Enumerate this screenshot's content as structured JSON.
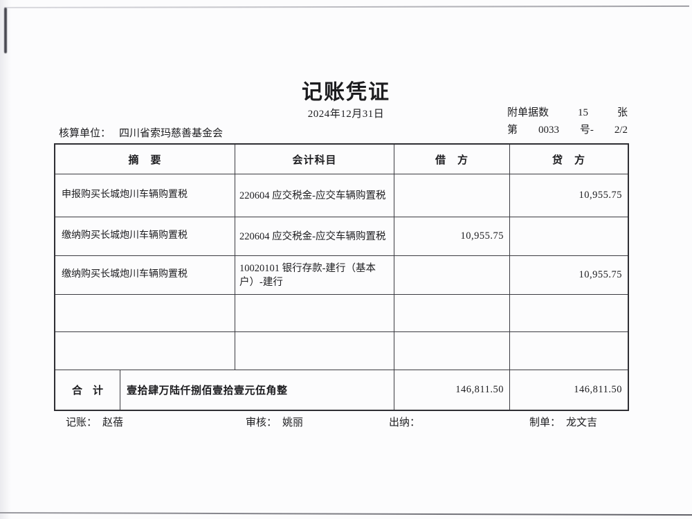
{
  "colors": {
    "ink": "#1c1c1f",
    "paper": "#fcfcfd",
    "table_border": "#3a3a40"
  },
  "document": {
    "title": "记账凭证",
    "date": "2024年12月31日",
    "attachment": {
      "label": "附单据数",
      "count": "15",
      "unit": "张"
    },
    "voucher_no": {
      "prefix": "第",
      "value": "0033",
      "suffix": "号-",
      "page": "2/2"
    },
    "unit": {
      "label": "核算单位：",
      "value": "四川省索玛慈善基金会"
    }
  },
  "table": {
    "headers": {
      "summary": "摘　要",
      "account": "会计科目",
      "debit": "借　方",
      "credit": "贷　方"
    },
    "rows": [
      {
        "summary": "申报购买长城炮川车辆购置税",
        "account": "220604 应交税金-应交车辆购置税",
        "debit": "",
        "credit": "10,955.75"
      },
      {
        "summary": "缴纳购买长城炮川车辆购置税",
        "account": "220604 应交税金-应交车辆购置税",
        "debit": "10,955.75",
        "credit": ""
      },
      {
        "summary": "缴纳购买长城炮川车辆购置税",
        "account": "10020101 银行存款-建行（基本户）-建行",
        "debit": "",
        "credit": "10,955.75"
      },
      {
        "summary": "",
        "account": "",
        "debit": "",
        "credit": ""
      },
      {
        "summary": "",
        "account": "",
        "debit": "",
        "credit": ""
      }
    ],
    "total": {
      "label": "合　计",
      "amount_in_words": "壹拾肆万陆仟捌佰壹拾壹元伍角整",
      "debit": "146,811.50",
      "credit": "146,811.50"
    }
  },
  "signatures": [
    {
      "label": "记账：",
      "name": "赵蓓"
    },
    {
      "label": "审核：",
      "name": "姚丽"
    },
    {
      "label": "出纳：",
      "name": ""
    },
    {
      "label": "制单：",
      "name": "龙文吉"
    }
  ]
}
